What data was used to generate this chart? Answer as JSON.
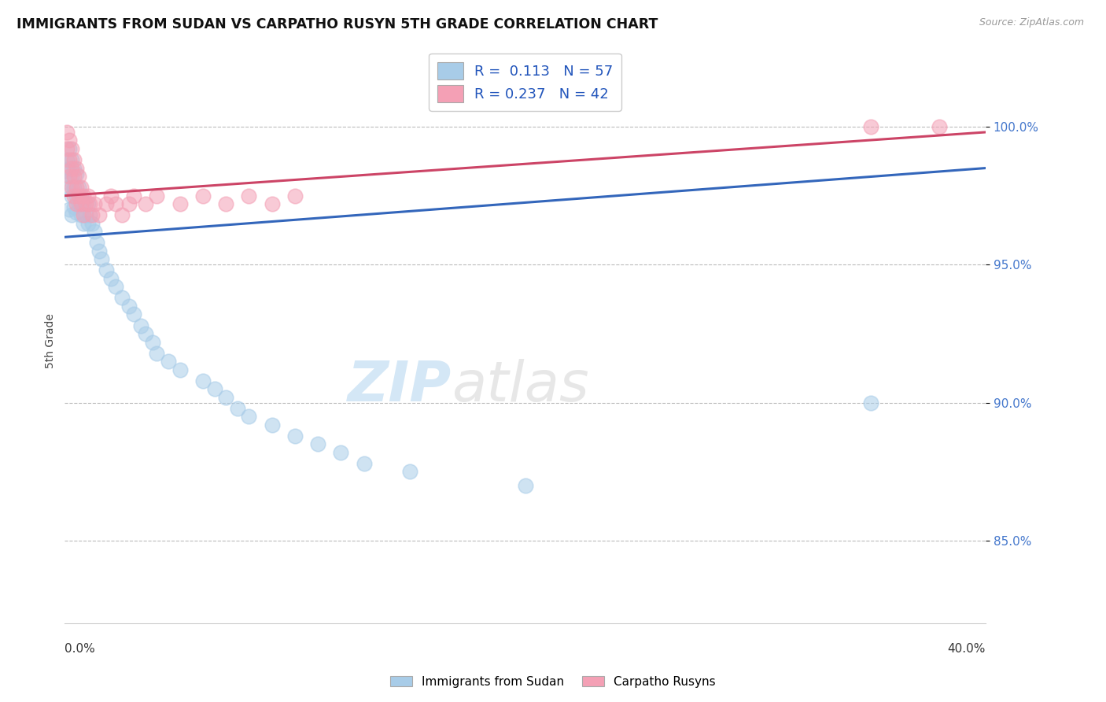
{
  "title": "IMMIGRANTS FROM SUDAN VS CARPATHO RUSYN 5TH GRADE CORRELATION CHART",
  "source": "Source: ZipAtlas.com",
  "ylabel": "5th Grade",
  "y_ticks": [
    0.85,
    0.9,
    0.95,
    1.0
  ],
  "y_tick_labels": [
    "85.0%",
    "90.0%",
    "95.0%",
    "100.0%"
  ],
  "xlim": [
    0.0,
    0.4
  ],
  "ylim": [
    0.82,
    1.025
  ],
  "R_blue": 0.113,
  "N_blue": 57,
  "R_pink": 0.237,
  "N_pink": 42,
  "blue_color": "#a8cce8",
  "pink_color": "#f4a0b5",
  "blue_line_color": "#3366bb",
  "pink_line_color": "#cc4466",
  "legend_label_blue": "Immigrants from Sudan",
  "legend_label_pink": "Carpatho Rusyns",
  "blue_scatter_x": [
    0.001,
    0.001,
    0.001,
    0.002,
    0.002,
    0.002,
    0.002,
    0.003,
    0.003,
    0.003,
    0.003,
    0.004,
    0.004,
    0.004,
    0.005,
    0.005,
    0.005,
    0.006,
    0.006,
    0.007,
    0.007,
    0.008,
    0.008,
    0.009,
    0.01,
    0.01,
    0.011,
    0.012,
    0.013,
    0.014,
    0.015,
    0.016,
    0.018,
    0.02,
    0.022,
    0.025,
    0.028,
    0.03,
    0.033,
    0.035,
    0.038,
    0.04,
    0.045,
    0.05,
    0.06,
    0.065,
    0.07,
    0.075,
    0.08,
    0.09,
    0.1,
    0.11,
    0.12,
    0.13,
    0.15,
    0.2,
    0.35
  ],
  "blue_scatter_y": [
    0.988,
    0.984,
    0.98,
    0.992,
    0.985,
    0.978,
    0.97,
    0.988,
    0.982,
    0.975,
    0.968,
    0.985,
    0.978,
    0.971,
    0.983,
    0.975,
    0.969,
    0.978,
    0.972,
    0.975,
    0.968,
    0.972,
    0.965,
    0.968,
    0.972,
    0.965,
    0.968,
    0.965,
    0.962,
    0.958,
    0.955,
    0.952,
    0.948,
    0.945,
    0.942,
    0.938,
    0.935,
    0.932,
    0.928,
    0.925,
    0.922,
    0.918,
    0.915,
    0.912,
    0.908,
    0.905,
    0.902,
    0.898,
    0.895,
    0.892,
    0.888,
    0.885,
    0.882,
    0.878,
    0.875,
    0.87,
    0.9
  ],
  "pink_scatter_x": [
    0.001,
    0.001,
    0.002,
    0.002,
    0.002,
    0.003,
    0.003,
    0.003,
    0.004,
    0.004,
    0.004,
    0.005,
    0.005,
    0.005,
    0.006,
    0.006,
    0.007,
    0.007,
    0.008,
    0.008,
    0.009,
    0.01,
    0.011,
    0.012,
    0.013,
    0.015,
    0.018,
    0.02,
    0.022,
    0.025,
    0.028,
    0.03,
    0.035,
    0.04,
    0.05,
    0.06,
    0.07,
    0.08,
    0.09,
    0.1,
    0.35,
    0.38
  ],
  "pink_scatter_y": [
    0.998,
    0.992,
    0.995,
    0.988,
    0.982,
    0.992,
    0.985,
    0.978,
    0.988,
    0.982,
    0.975,
    0.985,
    0.978,
    0.972,
    0.982,
    0.975,
    0.978,
    0.972,
    0.975,
    0.968,
    0.972,
    0.975,
    0.972,
    0.968,
    0.972,
    0.968,
    0.972,
    0.975,
    0.972,
    0.968,
    0.972,
    0.975,
    0.972,
    0.975,
    0.972,
    0.975,
    0.972,
    0.975,
    0.972,
    0.975,
    1.0,
    1.0
  ],
  "blue_line_x0": 0.0,
  "blue_line_y0": 0.96,
  "blue_line_x1": 0.4,
  "blue_line_y1": 0.985,
  "pink_line_x0": 0.0,
  "pink_line_y0": 0.975,
  "pink_line_x1": 0.4,
  "pink_line_y1": 0.998
}
